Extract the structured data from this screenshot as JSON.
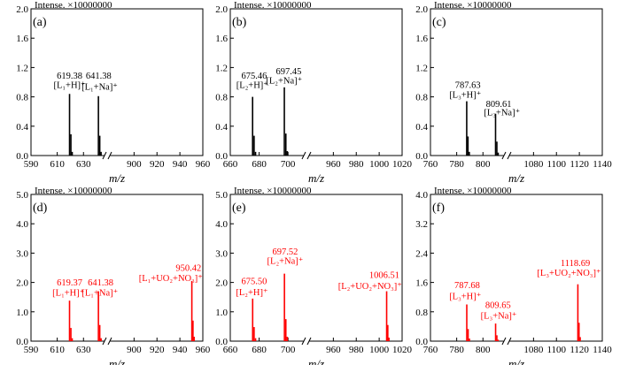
{
  "figure": {
    "ylabel_prefix": "Intense. ×10000000",
    "xlabel": "m/z"
  },
  "chart_data": [
    {
      "type": "bar",
      "panel": "(a)",
      "color": "#000000",
      "ylim": [
        0,
        2.0
      ],
      "yticks": [
        "0.0",
        "0.4",
        "0.8",
        "1.2",
        "1.6",
        "2.0"
      ],
      "x_segments": [
        [
          590,
          645
        ],
        [
          880,
          960
        ]
      ],
      "xticks": [
        "590",
        "610",
        "630",
        "900",
        "920",
        "940",
        "960"
      ],
      "peaks": [
        {
          "x": 619.38,
          "y": 0.84
        },
        {
          "x": 620.4,
          "y": 0.29
        },
        {
          "x": 621.4,
          "y": 0.05
        },
        {
          "x": 641.38,
          "y": 0.81
        },
        {
          "x": 642.4,
          "y": 0.27
        },
        {
          "x": 643.4,
          "y": 0.05
        }
      ],
      "annotations": [
        {
          "text": "619.38",
          "x": 619.38,
          "y": 1.05
        },
        {
          "text": "[L₁+H]⁺",
          "x": 619.38,
          "y": 0.92
        },
        {
          "text": "641.38",
          "x": 641.5,
          "y": 1.05
        },
        {
          "text": "[L₁+Na]⁺",
          "x": 642.3,
          "y": 0.9
        }
      ]
    },
    {
      "type": "bar",
      "panel": "(b)",
      "color": "#000000",
      "ylim": [
        0,
        2.0
      ],
      "yticks": [
        "0.0",
        "0.4",
        "0.8",
        "1.2",
        "1.6",
        "2.0"
      ],
      "x_segments": [
        [
          660,
          710
        ],
        [
          940,
          1020
        ]
      ],
      "xticks": [
        "660",
        "680",
        "700",
        "960",
        "980",
        "1000",
        "1020"
      ],
      "peaks": [
        {
          "x": 675.46,
          "y": 0.8
        },
        {
          "x": 676.5,
          "y": 0.27
        },
        {
          "x": 677.5,
          "y": 0.05
        },
        {
          "x": 697.45,
          "y": 0.93
        },
        {
          "x": 698.5,
          "y": 0.3
        },
        {
          "x": 699.5,
          "y": 0.06
        }
      ],
      "annotations": [
        {
          "text": "675.46",
          "x": 676.5,
          "y": 1.05
        },
        {
          "text": "697.45",
          "x": 700.5,
          "y": 1.11
        },
        {
          "text": "[L₂+H]⁺",
          "x": 675.2,
          "y": 0.92
        },
        {
          "text": "[L₂+Na]⁺",
          "x": 697.3,
          "y": 0.98
        }
      ]
    },
    {
      "type": "bar",
      "panel": "(c)",
      "color": "#000000",
      "ylim": [
        0,
        2.0
      ],
      "yticks": [
        "0.0",
        "0.4",
        "0.8",
        "1.2",
        "1.6",
        "2.0"
      ],
      "x_segments": [
        [
          760,
          815
        ],
        [
          1060,
          1140
        ]
      ],
      "xticks": [
        "760",
        "780",
        "800",
        "1080",
        "1100",
        "1120",
        "1140"
      ],
      "peaks": [
        {
          "x": 787.63,
          "y": 0.74
        },
        {
          "x": 788.6,
          "y": 0.26
        },
        {
          "x": 789.6,
          "y": 0.05
        },
        {
          "x": 809.61,
          "y": 0.57
        },
        {
          "x": 810.6,
          "y": 0.19
        },
        {
          "x": 811.6,
          "y": 0.04
        }
      ],
      "annotations": [
        {
          "text": "787.63",
          "x": 788.5,
          "y": 0.92
        },
        {
          "text": "[L₃+H]⁺",
          "x": 786.5,
          "y": 0.79
        },
        {
          "text": "809.61",
          "x": 812.0,
          "y": 0.66
        },
        {
          "text": "[L₃+Na]⁺",
          "x": 814.5,
          "y": 0.55
        }
      ]
    },
    {
      "type": "bar",
      "panel": "(d)",
      "color": "#ff0000",
      "ylim": [
        0,
        5.0
      ],
      "yticks": [
        "0.0",
        "1.0",
        "2.0",
        "3.0",
        "4.0",
        "5.0"
      ],
      "x_segments": [
        [
          590,
          645
        ],
        [
          880,
          960
        ]
      ],
      "xticks": [
        "590",
        "610",
        "630",
        "900",
        "920",
        "940",
        "960"
      ],
      "peaks": [
        {
          "x": 619.37,
          "y": 1.38
        },
        {
          "x": 620.4,
          "y": 0.45
        },
        {
          "x": 621.4,
          "y": 0.1
        },
        {
          "x": 641.38,
          "y": 1.7
        },
        {
          "x": 642.4,
          "y": 0.55
        },
        {
          "x": 643.4,
          "y": 0.1
        },
        {
          "x": 950.42,
          "y": 2.05
        },
        {
          "x": 951.4,
          "y": 0.7
        },
        {
          "x": 952.4,
          "y": 0.15
        }
      ],
      "annotations": [
        {
          "text": "619.37",
          "x": 619.37,
          "y": 1.9
        },
        {
          "text": "[L₁+H]⁺",
          "x": 618.5,
          "y": 1.55
        },
        {
          "text": "641.38",
          "x": 643.0,
          "y": 1.9
        },
        {
          "text": "[L₁+Na]⁺",
          "x": 642.5,
          "y": 1.55
        },
        {
          "text": "950.42",
          "x": 947.5,
          "y": 2.4
        },
        {
          "text": "[L₁+UO₂+NO₃]⁺",
          "x": 932.0,
          "y": 2.05
        }
      ]
    },
    {
      "type": "bar",
      "panel": "(e)",
      "color": "#ff0000",
      "ylim": [
        0,
        5.0
      ],
      "yticks": [
        "0.0",
        "1.0",
        "2.0",
        "3.0",
        "4.0",
        "5.0"
      ],
      "x_segments": [
        [
          660,
          710
        ],
        [
          940,
          1020
        ]
      ],
      "xticks": [
        "660",
        "680",
        "700",
        "960",
        "980",
        "1000",
        "1020"
      ],
      "peaks": [
        {
          "x": 675.5,
          "y": 1.45
        },
        {
          "x": 676.5,
          "y": 0.48
        },
        {
          "x": 677.5,
          "y": 0.1
        },
        {
          "x": 697.52,
          "y": 2.3
        },
        {
          "x": 698.5,
          "y": 0.75
        },
        {
          "x": 699.5,
          "y": 0.15
        },
        {
          "x": 1006.51,
          "y": 1.7
        },
        {
          "x": 1007.5,
          "y": 0.55
        },
        {
          "x": 1008.5,
          "y": 0.12
        }
      ],
      "annotations": [
        {
          "text": "675.50",
          "x": 676.5,
          "y": 1.95
        },
        {
          "text": "[L₂+H]⁺",
          "x": 675.0,
          "y": 1.57
        },
        {
          "text": "697.52",
          "x": 698.0,
          "y": 2.95
        },
        {
          "text": "[L₂+Na]⁺",
          "x": 698.0,
          "y": 2.63
        },
        {
          "text": "1006.51",
          "x": 1004.5,
          "y": 2.15
        },
        {
          "text": "[L₂+UO₂+NO₃]⁺",
          "x": 992.0,
          "y": 1.77
        }
      ]
    },
    {
      "type": "bar",
      "panel": "(f)",
      "color": "#ff0000",
      "ylim": [
        0,
        4.0
      ],
      "yticks": [
        "0.0",
        "0.8",
        "1.6",
        "2.4",
        "3.2",
        "4.0"
      ],
      "x_segments": [
        [
          760,
          815
        ],
        [
          1060,
          1140
        ]
      ],
      "xticks": [
        "760",
        "780",
        "800",
        "1080",
        "1100",
        "1120",
        "1140"
      ],
      "peaks": [
        {
          "x": 787.68,
          "y": 1.0
        },
        {
          "x": 788.7,
          "y": 0.33
        },
        {
          "x": 789.7,
          "y": 0.07
        },
        {
          "x": 809.65,
          "y": 0.48
        },
        {
          "x": 810.6,
          "y": 0.16
        },
        {
          "x": 811.6,
          "y": 0.04
        },
        {
          "x": 1118.69,
          "y": 1.55
        },
        {
          "x": 1119.7,
          "y": 0.5
        },
        {
          "x": 1120.7,
          "y": 0.11
        }
      ],
      "annotations": [
        {
          "text": "787.68",
          "x": 788.0,
          "y": 1.45
        },
        {
          "text": "[L₃+H]⁺",
          "x": 786.5,
          "y": 1.15
        },
        {
          "text": "809.65",
          "x": 811.5,
          "y": 0.9
        },
        {
          "text": "[L₃+Na]⁺",
          "x": 812.0,
          "y": 0.61
        },
        {
          "text": "1118.69",
          "x": 1116.5,
          "y": 2.05
        },
        {
          "text": "[L₃+UO₂+NO₃]⁺",
          "x": 1111.0,
          "y": 1.78
        }
      ]
    }
  ]
}
